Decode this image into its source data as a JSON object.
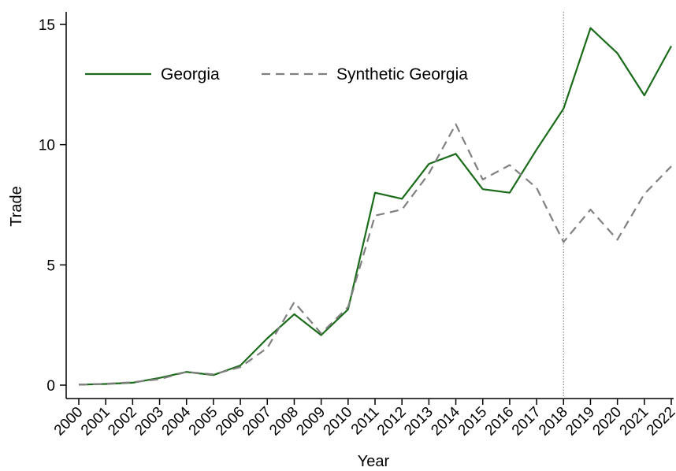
{
  "chart_data": {
    "type": "line",
    "xlabel": "Year",
    "ylabel": "Trade",
    "x": [
      2000,
      2001,
      2002,
      2003,
      2004,
      2005,
      2006,
      2007,
      2008,
      2009,
      2010,
      2011,
      2012,
      2013,
      2014,
      2015,
      2016,
      2017,
      2018,
      2019,
      2020,
      2021,
      2022
    ],
    "xlim": [
      2000,
      2022
    ],
    "ylim": [
      0,
      15.5
    ],
    "yticks": [
      0,
      5,
      10,
      15
    ],
    "grid": false,
    "legend_position": "top-left",
    "vline": {
      "x": 2018,
      "style": "dotted"
    },
    "series": [
      {
        "name": "Georgia",
        "color": "#1a6b1a",
        "style": "solid",
        "values": [
          0.02,
          0.05,
          0.1,
          0.3,
          0.55,
          0.42,
          0.82,
          1.95,
          2.95,
          2.08,
          3.15,
          8.0,
          7.75,
          9.2,
          9.62,
          8.15,
          8.0,
          9.8,
          11.5,
          14.85,
          13.8,
          12.05,
          14.1
        ]
      },
      {
        "name": "Synthetic Georgia",
        "color": "#808080",
        "style": "dashed",
        "values": [
          0.02,
          0.06,
          0.12,
          0.25,
          0.55,
          0.45,
          0.75,
          1.55,
          3.45,
          2.15,
          3.25,
          7.05,
          7.3,
          8.8,
          10.85,
          8.55,
          9.15,
          8.2,
          5.95,
          7.3,
          6.05,
          7.95,
          9.1
        ]
      }
    ]
  }
}
